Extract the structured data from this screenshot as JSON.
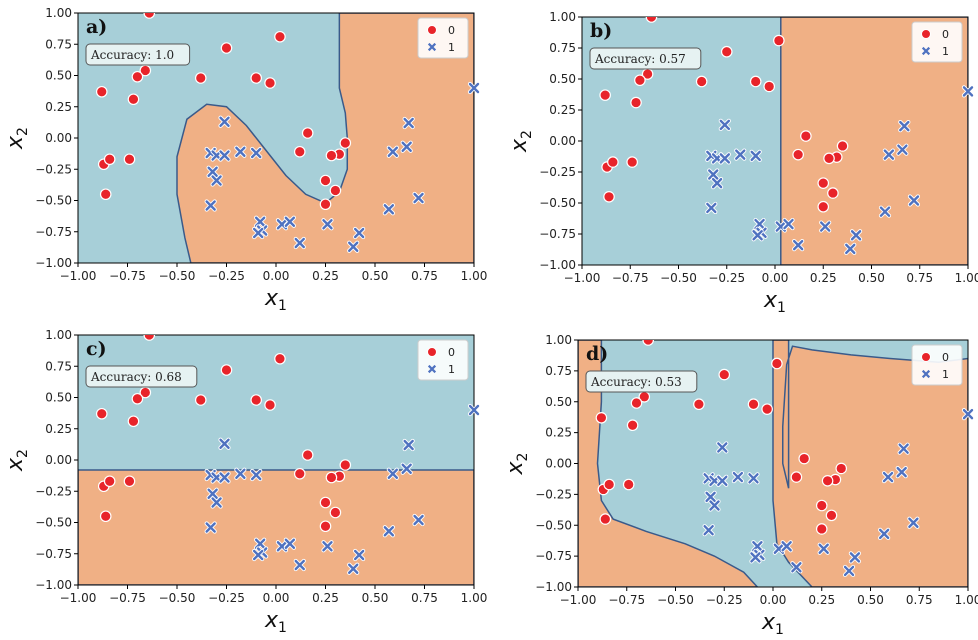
{
  "colors": {
    "region_class0": "#a7cfd8",
    "region_class1": "#f0b085",
    "boundary": "#3a5a8a",
    "class0_marker": "#e8242a",
    "class1_marker": "#4f72c0"
  },
  "chart_data": [
    {
      "type": "scatter",
      "panel": "a)",
      "accuracy_label": "Accuracy: 1.0",
      "xlabel": "x",
      "xlabel_sub": "1",
      "ylabel": "x",
      "ylabel_sub": "2",
      "xlim": [
        -1.0,
        1.0
      ],
      "ylim": [
        -1.0,
        1.0
      ],
      "xticks": [
        "−1.00",
        "−0.75",
        "−0.50",
        "−0.25",
        "0.00",
        "0.25",
        "0.50",
        "0.75",
        "1.00"
      ],
      "yticks": [
        "−1.00",
        "−0.75",
        "−0.50",
        "−0.25",
        "0.00",
        "0.25",
        "0.50",
        "0.75",
        "1.00"
      ],
      "legend": [
        {
          "label": "0"
        },
        {
          "label": "1"
        }
      ],
      "legend_position": "upper-right",
      "region_class1_polygon": [
        [
          0.32,
          1.0
        ],
        [
          1.0,
          1.0
        ],
        [
          1.0,
          -1.0
        ],
        [
          -0.43,
          -1.0
        ],
        [
          -0.46,
          -0.8
        ],
        [
          -0.5,
          -0.45
        ],
        [
          -0.5,
          -0.15
        ],
        [
          -0.45,
          0.15
        ],
        [
          -0.35,
          0.27
        ],
        [
          -0.25,
          0.25
        ],
        [
          -0.15,
          0.1
        ],
        [
          -0.05,
          -0.1
        ],
        [
          0.05,
          -0.3
        ],
        [
          0.15,
          -0.45
        ],
        [
          0.25,
          -0.52
        ],
        [
          0.32,
          -0.43
        ],
        [
          0.36,
          -0.25
        ],
        [
          0.36,
          0.0
        ],
        [
          0.35,
          0.2
        ],
        [
          0.32,
          0.4
        ]
      ]
    },
    {
      "type": "scatter",
      "panel": "b)",
      "accuracy_label": "Accuracy: 0.57",
      "xlabel": "x",
      "xlabel_sub": "1",
      "ylabel": "x",
      "ylabel_sub": "2",
      "xlim": [
        -1.0,
        1.0
      ],
      "ylim": [
        -1.0,
        1.0
      ],
      "xticks": [
        "−1.00",
        "−0.75",
        "−0.50",
        "−0.25",
        "0.00",
        "0.25",
        "0.50",
        "0.75",
        "1.00"
      ],
      "yticks": [
        "−1.00",
        "−0.75",
        "−0.50",
        "−0.25",
        "0.00",
        "0.25",
        "0.50",
        "0.75",
        "1.00"
      ],
      "legend": [
        {
          "label": "0"
        },
        {
          "label": "1"
        }
      ],
      "legend_position": "upper-right",
      "region_class1_polygon": [
        [
          0.03,
          1.0
        ],
        [
          1.0,
          1.0
        ],
        [
          1.0,
          -1.0
        ],
        [
          0.03,
          -1.0
        ]
      ]
    },
    {
      "type": "scatter",
      "panel": "c)",
      "accuracy_label": "Accuracy: 0.68",
      "xlabel": "x",
      "xlabel_sub": "1",
      "ylabel": "x",
      "ylabel_sub": "2",
      "xlim": [
        -1.0,
        1.0
      ],
      "ylim": [
        -1.0,
        1.0
      ],
      "xticks": [
        "−1.00",
        "−0.75",
        "−0.50",
        "−0.25",
        "0.00",
        "0.25",
        "0.50",
        "0.75",
        "1.00"
      ],
      "yticks": [
        "−1.00",
        "−0.75",
        "−0.50",
        "−0.25",
        "0.00",
        "0.25",
        "0.50",
        "0.75",
        "1.00"
      ],
      "legend": [
        {
          "label": "0"
        },
        {
          "label": "1"
        }
      ],
      "legend_position": "upper-right",
      "region_class1_polygon": [
        [
          -1.0,
          -0.08
        ],
        [
          1.0,
          -0.08
        ],
        [
          1.0,
          -1.0
        ],
        [
          -1.0,
          -1.0
        ]
      ]
    },
    {
      "type": "scatter",
      "panel": "d)",
      "accuracy_label": "Accuracy: 0.53",
      "xlabel": "x",
      "xlabel_sub": "1",
      "ylabel": "x",
      "ylabel_sub": "2",
      "xlim": [
        -1.0,
        1.0
      ],
      "ylim": [
        -1.0,
        1.0
      ],
      "xticks": [
        "−1.00",
        "−0.75",
        "−0.50",
        "−0.25",
        "0.00",
        "0.25",
        "0.50",
        "0.75",
        "1.00"
      ],
      "yticks": [
        "−1.00",
        "−0.75",
        "−0.50",
        "−0.25",
        "0.00",
        "0.25",
        "0.50",
        "0.75",
        "1.00"
      ],
      "legend": [
        {
          "label": "0"
        },
        {
          "label": "1"
        }
      ],
      "legend_position": "upper-right",
      "region_class1_polygon_left": [
        [
          -1.0,
          1.0
        ],
        [
          -0.88,
          1.0
        ],
        [
          -0.88,
          0.5
        ],
        [
          -0.9,
          0.0
        ],
        [
          -0.88,
          -0.3
        ],
        [
          -0.82,
          -0.45
        ],
        [
          -0.65,
          -0.55
        ],
        [
          -0.45,
          -0.65
        ],
        [
          -0.3,
          -0.75
        ],
        [
          -0.15,
          -0.88
        ],
        [
          -0.08,
          -1.0
        ],
        [
          -1.0,
          -1.0
        ]
      ],
      "region_class1_polygon_right": [
        [
          0.0,
          1.0
        ],
        [
          0.0,
          -0.3
        ],
        [
          0.02,
          -0.65
        ],
        [
          0.08,
          -0.8
        ],
        [
          0.2,
          -1.0
        ],
        [
          1.0,
          -1.0
        ],
        [
          1.0,
          0.85
        ],
        [
          0.85,
          0.82
        ],
        [
          0.6,
          0.85
        ],
        [
          0.4,
          0.88
        ],
        [
          0.2,
          0.92
        ],
        [
          0.1,
          0.95
        ],
        [
          0.07,
          0.8
        ],
        [
          0.05,
          0.3
        ],
        [
          0.05,
          0.0
        ],
        [
          0.08,
          -0.2
        ],
        [
          0.08,
          1.0
        ]
      ]
    }
  ],
  "points": {
    "class0": [
      [
        -0.64,
        1.0
      ],
      [
        0.02,
        0.81
      ],
      [
        -0.25,
        0.72
      ],
      [
        -0.66,
        0.54
      ],
      [
        -0.7,
        0.49
      ],
      [
        -0.38,
        0.48
      ],
      [
        -0.1,
        0.48
      ],
      [
        -0.03,
        0.44
      ],
      [
        -0.88,
        0.37
      ],
      [
        -0.72,
        0.31
      ],
      [
        0.16,
        0.04
      ],
      [
        0.35,
        -0.04
      ],
      [
        0.32,
        -0.13
      ],
      [
        0.28,
        -0.14
      ],
      [
        0.12,
        -0.11
      ],
      [
        -0.87,
        -0.21
      ],
      [
        -0.84,
        -0.17
      ],
      [
        -0.74,
        -0.17
      ],
      [
        0.25,
        -0.34
      ],
      [
        0.3,
        -0.42
      ],
      [
        -0.86,
        -0.45
      ],
      [
        0.25,
        -0.53
      ]
    ],
    "class1": [
      [
        1.0,
        0.4
      ],
      [
        -0.26,
        0.13
      ],
      [
        0.67,
        0.12
      ],
      [
        0.66,
        -0.07
      ],
      [
        0.59,
        -0.11
      ],
      [
        -0.33,
        -0.12
      ],
      [
        -0.3,
        -0.14
      ],
      [
        -0.26,
        -0.14
      ],
      [
        -0.18,
        -0.11
      ],
      [
        -0.1,
        -0.12
      ],
      [
        -0.32,
        -0.27
      ],
      [
        -0.3,
        -0.34
      ],
      [
        0.72,
        -0.48
      ],
      [
        -0.33,
        -0.54
      ],
      [
        0.57,
        -0.57
      ],
      [
        -0.08,
        -0.67
      ],
      [
        0.03,
        -0.69
      ],
      [
        0.07,
        -0.67
      ],
      [
        -0.07,
        -0.74
      ],
      [
        -0.09,
        -0.76
      ],
      [
        0.26,
        -0.69
      ],
      [
        0.42,
        -0.76
      ],
      [
        0.12,
        -0.84
      ],
      [
        0.39,
        -0.87
      ]
    ]
  }
}
